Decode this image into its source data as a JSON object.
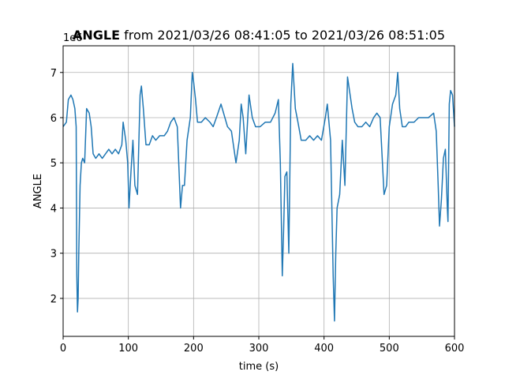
{
  "chart_data": {
    "type": "line",
    "title_bold": "ANGLE",
    "title": "from 2021/03/26 08:41:05 to 2021/03/26 08:51:05",
    "xlabel": "time (s)",
    "ylabel": "ANGLE",
    "offset_label": "1e6",
    "xlim": [
      0,
      600
    ],
    "xticks": [
      0,
      100,
      200,
      300,
      400,
      500,
      600
    ],
    "ylim": [
      1.16,
      7.59
    ],
    "yticks": [
      2,
      3,
      4,
      5,
      6,
      7
    ],
    "grid": true,
    "series": [
      {
        "name": "ANGLE",
        "color": "#1f77b4",
        "x": [
          0,
          5,
          8,
          12,
          15,
          18,
          20,
          21,
          22,
          23,
          24,
          26,
          28,
          30,
          33,
          36,
          40,
          43,
          46,
          50,
          55,
          60,
          65,
          70,
          75,
          80,
          85,
          90,
          92,
          96,
          99,
          101,
          104,
          107,
          110,
          114,
          118,
          120,
          123,
          127,
          132,
          137,
          142,
          148,
          155,
          160,
          165,
          170,
          175,
          180,
          183,
          186,
          190,
          195,
          198,
          200,
          203,
          206,
          212,
          218,
          225,
          230,
          235,
          242,
          248,
          252,
          258,
          262,
          265,
          270,
          273,
          276,
          280,
          285,
          290,
          295,
          302,
          310,
          318,
          325,
          330,
          333,
          336,
          338,
          340,
          343,
          346,
          349,
          352,
          356,
          360,
          365,
          372,
          378,
          384,
          390,
          396,
          402,
          405,
          410,
          414,
          416,
          418,
          420,
          424,
          428,
          432,
          436,
          440,
          443,
          447,
          452,
          458,
          464,
          470,
          476,
          481,
          486,
          492,
          496,
          500,
          505,
          510,
          513,
          516,
          520,
          525,
          530,
          538,
          545,
          552,
          560,
          568,
          572,
          575,
          577,
          580,
          583,
          586,
          589,
          590,
          592,
          594,
          597,
          600
        ],
        "values": [
          5.8,
          5.9,
          6.4,
          6.5,
          6.4,
          6.2,
          5.8,
          2.5,
          1.7,
          2.0,
          3.0,
          4.5,
          5.0,
          5.1,
          5.0,
          6.2,
          6.1,
          5.8,
          5.2,
          5.1,
          5.2,
          5.1,
          5.2,
          5.3,
          5.2,
          5.3,
          5.2,
          5.4,
          5.9,
          5.5,
          5.0,
          4.0,
          4.8,
          5.5,
          4.5,
          4.3,
          6.5,
          6.7,
          6.2,
          5.4,
          5.4,
          5.6,
          5.5,
          5.6,
          5.6,
          5.7,
          5.9,
          6.0,
          5.8,
          4.0,
          4.5,
          4.5,
          5.5,
          6.0,
          7.0,
          6.8,
          6.4,
          5.9,
          5.9,
          6.0,
          5.9,
          5.8,
          6.0,
          6.3,
          6.0,
          5.8,
          5.7,
          5.3,
          5.0,
          5.5,
          6.3,
          6.0,
          5.2,
          6.5,
          6.0,
          5.8,
          5.8,
          5.9,
          5.9,
          6.1,
          6.4,
          5.0,
          2.5,
          3.5,
          4.7,
          4.8,
          3.0,
          6.3,
          7.2,
          6.2,
          5.9,
          5.5,
          5.5,
          5.6,
          5.5,
          5.6,
          5.5,
          6.0,
          6.3,
          5.5,
          2.5,
          1.5,
          3.0,
          4.0,
          4.3,
          5.5,
          4.5,
          6.9,
          6.5,
          6.2,
          5.9,
          5.8,
          5.8,
          5.9,
          5.8,
          6.0,
          6.1,
          6.0,
          4.3,
          4.5,
          5.8,
          6.3,
          6.5,
          7.0,
          6.2,
          5.8,
          5.8,
          5.9,
          5.9,
          6.0,
          6.0,
          6.0,
          6.1,
          5.7,
          4.5,
          3.6,
          4.2,
          5.1,
          5.3,
          4.0,
          3.7,
          6.3,
          6.6,
          6.5,
          5.8
        ]
      }
    ]
  }
}
